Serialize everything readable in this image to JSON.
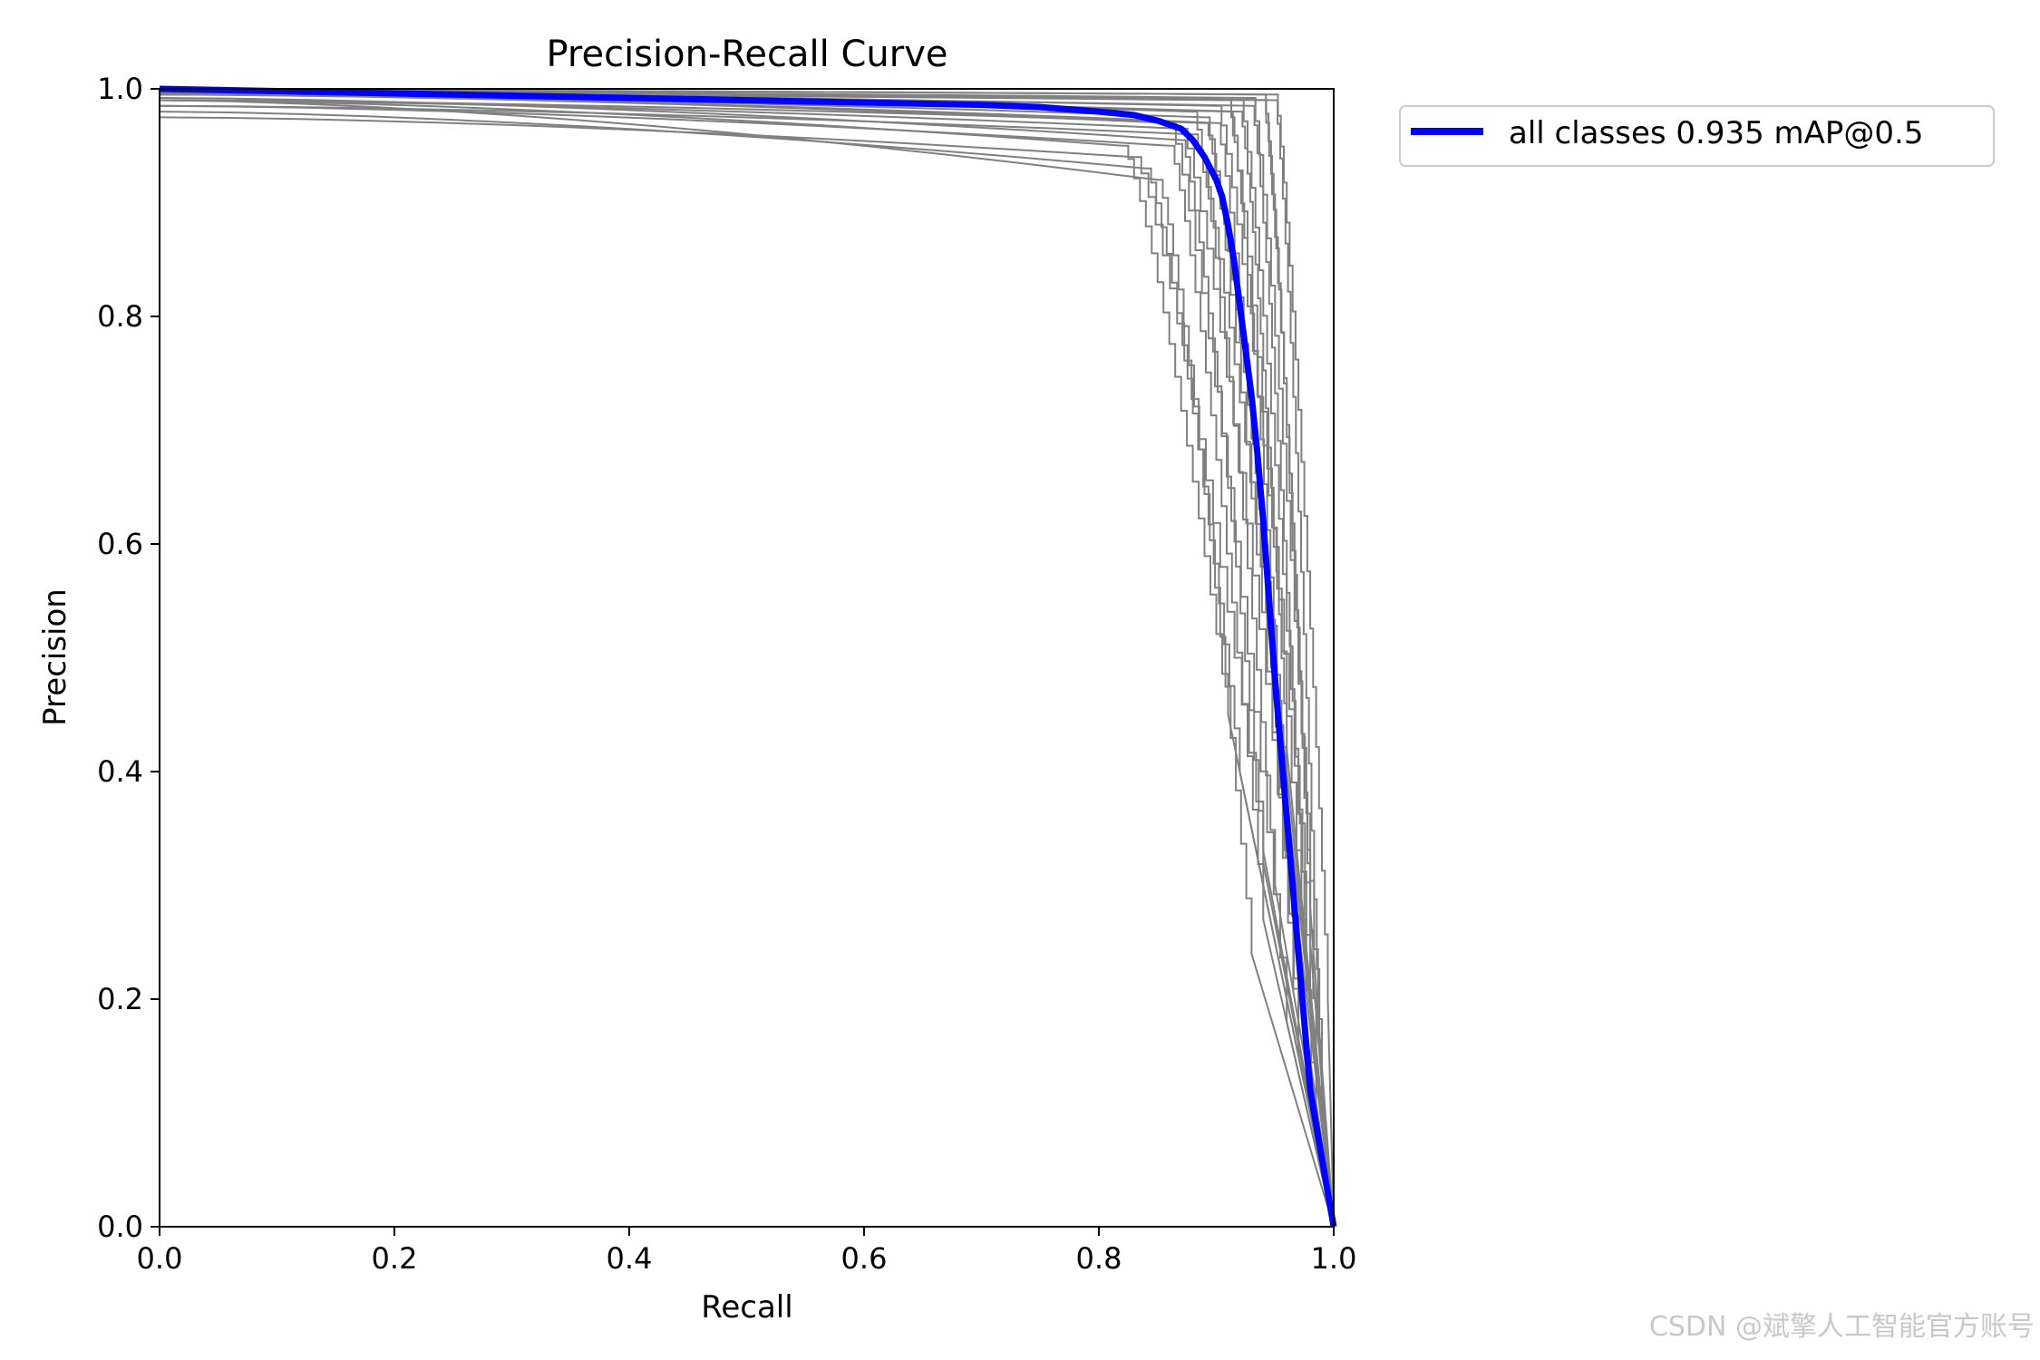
{
  "chart_data": {
    "type": "line",
    "title": "Precision-Recall Curve",
    "xlabel": "Recall",
    "ylabel": "Precision",
    "xlim": [
      0,
      1
    ],
    "ylim": [
      0,
      1
    ],
    "xticks": [
      "0.0",
      "0.2",
      "0.4",
      "0.6",
      "0.8",
      "1.0"
    ],
    "yticks": [
      "0.0",
      "0.2",
      "0.4",
      "0.6",
      "0.8",
      "1.0"
    ],
    "grid": false,
    "legend_position": "outside-top-right",
    "colors": {
      "mean": "#0000ff",
      "per_class": "#808080"
    },
    "series": [
      {
        "name": "all classes 0.935 mAP@0.5",
        "x": [
          0,
          0.1,
          0.2,
          0.3,
          0.4,
          0.5,
          0.6,
          0.7,
          0.75,
          0.8,
          0.83,
          0.85,
          0.87,
          0.88,
          0.89,
          0.9,
          0.905,
          0.91,
          0.915,
          0.92,
          0.925,
          0.93,
          0.935,
          0.94,
          0.945,
          0.95,
          0.955,
          0.96,
          0.965,
          0.97,
          0.975,
          0.98,
          0.99,
          1.0
        ],
        "y": [
          1.0,
          0.998,
          0.996,
          0.994,
          0.992,
          0.99,
          0.988,
          0.986,
          0.984,
          0.98,
          0.977,
          0.972,
          0.965,
          0.955,
          0.94,
          0.92,
          0.905,
          0.88,
          0.85,
          0.81,
          0.77,
          0.73,
          0.68,
          0.62,
          0.55,
          0.48,
          0.42,
          0.36,
          0.3,
          0.24,
          0.18,
          0.12,
          0.06,
          0.0
        ]
      }
    ],
    "per_class_curves": [
      {
        "r1": 0.86,
        "r2": 0.96,
        "p0": 0.995,
        "pflat": 0.97,
        "pend": 0.18
      },
      {
        "r1": 0.87,
        "r2": 0.97,
        "p0": 0.99,
        "pflat": 0.965,
        "pend": 0.22
      },
      {
        "r1": 0.88,
        "r2": 0.95,
        "p0": 0.998,
        "pflat": 0.98,
        "pend": 0.3
      },
      {
        "r1": 0.89,
        "r2": 0.97,
        "p0": 0.995,
        "pflat": 0.975,
        "pend": 0.15
      },
      {
        "r1": 0.9,
        "r2": 0.98,
        "p0": 0.997,
        "pflat": 0.985,
        "pend": 0.25
      },
      {
        "r1": 0.91,
        "r2": 0.96,
        "p0": 0.996,
        "pflat": 0.99,
        "pend": 0.35
      },
      {
        "r1": 0.92,
        "r2": 0.98,
        "p0": 0.999,
        "pflat": 0.99,
        "pend": 0.2
      },
      {
        "r1": 0.93,
        "r2": 0.99,
        "p0": 0.998,
        "pflat": 0.992,
        "pend": 0.12
      },
      {
        "r1": 0.94,
        "r2": 0.98,
        "p0": 0.999,
        "pflat": 0.995,
        "pend": 0.28
      },
      {
        "r1": 0.95,
        "r2": 0.99,
        "p0": 0.999,
        "pflat": 0.99,
        "pend": 0.1
      },
      {
        "r1": 0.85,
        "r2": 0.93,
        "p0": 0.99,
        "pflat": 0.92,
        "pend": 0.24
      },
      {
        "r1": 0.84,
        "r2": 0.92,
        "p0": 0.98,
        "pflat": 0.93,
        "pend": 0.4
      },
      {
        "r1": 0.83,
        "r2": 0.94,
        "p0": 0.975,
        "pflat": 0.94,
        "pend": 0.33
      },
      {
        "r1": 0.82,
        "r2": 0.91,
        "p0": 0.99,
        "pflat": 0.95,
        "pend": 0.45
      },
      {
        "r1": 0.88,
        "r2": 0.96,
        "p0": 0.985,
        "pflat": 0.96,
        "pend": 0.38
      },
      {
        "r1": 0.9,
        "r2": 0.97,
        "p0": 0.995,
        "pflat": 0.97,
        "pend": 0.16
      },
      {
        "r1": 0.92,
        "r2": 0.96,
        "p0": 0.997,
        "pflat": 0.98,
        "pend": 0.42
      },
      {
        "r1": 0.93,
        "r2": 0.975,
        "p0": 0.996,
        "pflat": 0.985,
        "pend": 0.26
      },
      {
        "r1": 0.94,
        "r2": 0.985,
        "p0": 0.998,
        "pflat": 0.99,
        "pend": 0.14
      },
      {
        "r1": 0.89,
        "r2": 0.95,
        "p0": 0.99,
        "pflat": 0.97,
        "pend": 0.5
      },
      {
        "r1": 0.87,
        "r2": 0.94,
        "p0": 0.992,
        "pflat": 0.955,
        "pend": 0.32
      },
      {
        "r1": 0.91,
        "r2": 0.985,
        "p0": 0.996,
        "pflat": 0.98,
        "pend": 0.08
      },
      {
        "r1": 0.95,
        "r2": 0.995,
        "p0": 0.999,
        "pflat": 0.995,
        "pend": 0.2
      },
      {
        "r1": 0.86,
        "r2": 0.94,
        "p0": 0.985,
        "pflat": 0.95,
        "pend": 0.27
      }
    ]
  },
  "watermark": "CSDN @斌擎人工智能官方账号"
}
